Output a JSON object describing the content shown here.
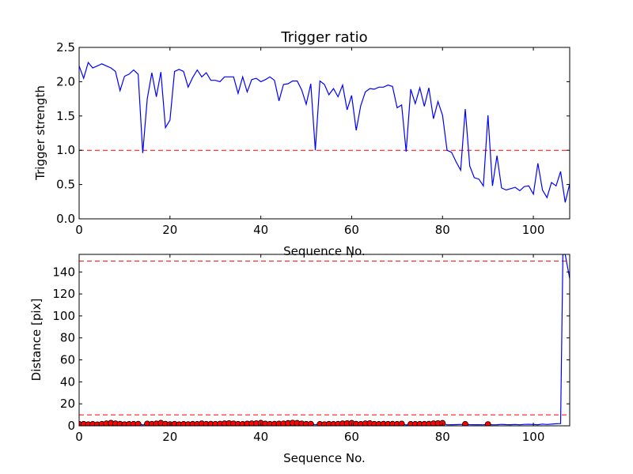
{
  "chart_data": [
    {
      "type": "line",
      "title": "Trigger ratio",
      "xlabel": "Sequence No.",
      "ylabel": "Trigger strength",
      "xlim": [
        0,
        108
      ],
      "ylim": [
        0,
        2.5
      ],
      "xticks": [
        0,
        20,
        40,
        60,
        80,
        100
      ],
      "yticks": [
        0.0,
        0.5,
        1.0,
        1.5,
        2.0,
        2.5
      ],
      "ytick_labels": [
        "0.0",
        "0.5",
        "1.0",
        "1.5",
        "2.0",
        "2.5"
      ],
      "reference_lines": [
        {
          "y": 1.0,
          "color": "#ff0000",
          "style": "dashed"
        }
      ],
      "series": [
        {
          "name": "trigger strength",
          "color": "#0000ff",
          "x": [
            0,
            1,
            2,
            3,
            4,
            5,
            6,
            7,
            8,
            9,
            10,
            11,
            12,
            13,
            14,
            15,
            16,
            17,
            18,
            19,
            20,
            21,
            22,
            23,
            24,
            25,
            26,
            27,
            28,
            29,
            30,
            31,
            32,
            33,
            34,
            35,
            36,
            37,
            38,
            39,
            40,
            41,
            42,
            43,
            44,
            45,
            46,
            47,
            48,
            49,
            50,
            51,
            52,
            53,
            54,
            55,
            56,
            57,
            58,
            59,
            60,
            61,
            62,
            63,
            64,
            65,
            66,
            67,
            68,
            69,
            70,
            71,
            72,
            73,
            74,
            75,
            76,
            77,
            78,
            79,
            80,
            81,
            82,
            83,
            84,
            85,
            86,
            87,
            88,
            89,
            90,
            91,
            92,
            93,
            94,
            95,
            96,
            97,
            98,
            99,
            100,
            101,
            102,
            103,
            104,
            105,
            106,
            107,
            108
          ],
          "y": [
            2.23,
            2.05,
            2.28,
            2.2,
            2.23,
            2.26,
            2.23,
            2.2,
            2.15,
            1.87,
            2.08,
            2.11,
            2.17,
            2.11,
            0.96,
            1.75,
            2.13,
            1.78,
            2.14,
            1.33,
            1.44,
            2.15,
            2.18,
            2.15,
            1.92,
            2.06,
            2.17,
            2.07,
            2.13,
            2.02,
            2.02,
            2.0,
            2.07,
            2.07,
            2.07,
            1.83,
            2.07,
            1.85,
            2.03,
            2.05,
            2.0,
            2.03,
            2.07,
            2.02,
            1.72,
            1.96,
            1.97,
            2.01,
            2.01,
            1.88,
            1.67,
            1.97,
            1.0,
            2.01,
            1.96,
            1.81,
            1.9,
            1.78,
            1.95,
            1.59,
            1.8,
            1.29,
            1.65,
            1.85,
            1.9,
            1.89,
            1.92,
            1.92,
            1.95,
            1.93,
            1.62,
            1.66,
            0.98,
            1.89,
            1.68,
            1.91,
            1.64,
            1.91,
            1.46,
            1.71,
            1.51,
            1.0,
            0.97,
            0.83,
            0.71,
            1.6,
            0.77,
            0.6,
            0.58,
            0.48,
            1.51,
            0.48,
            0.92,
            0.45,
            0.42,
            0.44,
            0.46,
            0.41,
            0.47,
            0.48,
            0.36,
            0.81,
            0.42,
            0.31,
            0.53,
            0.48,
            0.69,
            0.24,
            0.51
          ]
        }
      ]
    },
    {
      "type": "line",
      "title": "",
      "xlabel": "Sequence No.",
      "ylabel": "Distance [pix]",
      "xlim": [
        0,
        108
      ],
      "ylim": [
        0,
        156
      ],
      "xticks": [
        0,
        20,
        40,
        60,
        80,
        100
      ],
      "yticks": [
        0,
        20,
        40,
        60,
        80,
        100,
        120,
        140
      ],
      "ytick_labels": [
        "0",
        "20",
        "40",
        "60",
        "80",
        "100",
        "120",
        "140"
      ],
      "reference_lines": [
        {
          "y": 10,
          "color": "#ff0000",
          "style": "dashed"
        },
        {
          "y": 150,
          "color": "#ff0000",
          "style": "dashed"
        }
      ],
      "series": [
        {
          "name": "distance",
          "color": "#0000ff",
          "x": [
            0,
            1,
            2,
            3,
            4,
            5,
            6,
            7,
            8,
            9,
            10,
            11,
            12,
            13,
            14,
            15,
            16,
            17,
            18,
            19,
            20,
            21,
            22,
            23,
            24,
            25,
            26,
            27,
            28,
            29,
            30,
            31,
            32,
            33,
            34,
            35,
            36,
            37,
            38,
            39,
            40,
            41,
            42,
            43,
            44,
            45,
            46,
            47,
            48,
            49,
            50,
            51,
            52,
            53,
            54,
            55,
            56,
            57,
            58,
            59,
            60,
            61,
            62,
            63,
            64,
            65,
            66,
            67,
            68,
            69,
            70,
            71,
            72,
            73,
            74,
            75,
            76,
            77,
            78,
            79,
            80,
            81,
            82,
            83,
            84,
            85,
            86,
            87,
            88,
            89,
            90,
            91,
            92,
            93,
            94,
            95,
            96,
            97,
            98,
            99,
            100,
            101,
            102,
            103,
            104,
            105,
            106,
            106.5,
            107,
            108
          ],
          "y": [
            1.5,
            1.5,
            1.2,
            1.4,
            1.1,
            1.5,
            2.0,
            2.5,
            2.0,
            1.6,
            1.2,
            1.4,
            1.5,
            1.6,
            0.8,
            1.8,
            1.5,
            1.9,
            2.5,
            1.6,
            1.3,
            1.5,
            1.2,
            1.4,
            1.3,
            1.5,
            1.4,
            2.0,
            1.5,
            1.6,
            1.5,
            1.7,
            2.0,
            2.2,
            1.9,
            1.5,
            1.4,
            1.8,
            2.0,
            2.1,
            2.5,
            1.8,
            1.5,
            1.6,
            1.8,
            1.9,
            2.3,
            2.6,
            2.4,
            1.9,
            1.5,
            1.6,
            0.9,
            1.4,
            1.2,
            1.5,
            1.4,
            1.6,
            2.0,
            2.2,
            2.4,
            1.6,
            1.4,
            2.0,
            2.2,
            1.5,
            1.4,
            1.6,
            1.5,
            1.6,
            1.5,
            1.8,
            0.8,
            1.4,
            1.4,
            1.5,
            1.5,
            1.6,
            2.0,
            2.2,
            2.4,
            0.9,
            1.0,
            1.1,
            1.2,
            1.4,
            1.1,
            1.0,
            1.0,
            0.9,
            1.3,
            0.9,
            1.0,
            1.3,
            1.1,
            1.0,
            1.2,
            0.9,
            1.3,
            1.4,
            1.2,
            1.0,
            1.6,
            1.2,
            1.5,
            1.9,
            2.0,
            156,
            156,
            134
          ]
        }
      ],
      "markers": {
        "color": "#ff0000",
        "x": [
          0,
          1,
          2,
          3,
          4,
          5,
          6,
          7,
          8,
          9,
          10,
          11,
          12,
          13,
          15,
          16,
          17,
          18,
          19,
          20,
          21,
          22,
          23,
          24,
          25,
          26,
          27,
          28,
          29,
          30,
          31,
          32,
          33,
          34,
          35,
          36,
          37,
          38,
          39,
          40,
          41,
          42,
          43,
          44,
          45,
          46,
          47,
          48,
          49,
          50,
          51,
          53,
          54,
          55,
          56,
          57,
          58,
          59,
          60,
          61,
          62,
          63,
          64,
          65,
          66,
          67,
          68,
          69,
          70,
          71,
          73,
          74,
          75,
          76,
          77,
          78,
          79,
          80,
          85,
          90
        ],
        "y": [
          1.5,
          1.5,
          1.2,
          1.4,
          1.1,
          1.5,
          2.0,
          2.5,
          2.0,
          1.6,
          1.2,
          1.4,
          1.5,
          1.6,
          1.8,
          1.5,
          1.9,
          2.5,
          1.6,
          1.3,
          1.5,
          1.2,
          1.4,
          1.3,
          1.5,
          1.4,
          2.0,
          1.5,
          1.6,
          1.5,
          1.7,
          2.0,
          2.2,
          1.9,
          1.5,
          1.4,
          1.8,
          2.0,
          2.1,
          2.5,
          1.8,
          1.5,
          1.6,
          1.8,
          1.9,
          2.3,
          2.6,
          2.4,
          1.9,
          1.5,
          1.6,
          1.4,
          1.2,
          1.5,
          1.4,
          1.6,
          2.0,
          2.2,
          2.4,
          1.6,
          1.4,
          2.0,
          2.2,
          1.5,
          1.4,
          1.6,
          1.5,
          1.6,
          1.5,
          1.8,
          1.4,
          1.4,
          1.5,
          1.5,
          1.6,
          2.0,
          2.2,
          2.4,
          1.4,
          1.3
        ]
      }
    }
  ]
}
